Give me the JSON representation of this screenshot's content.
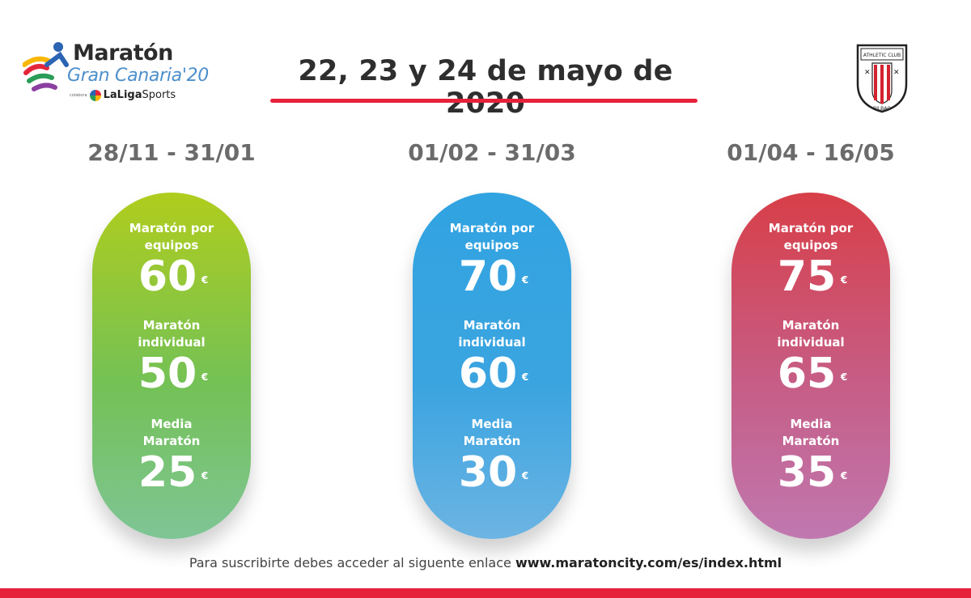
{
  "logo": {
    "title": "Maratón",
    "subtitle": "Gran Canaria'20",
    "colabora": "colabora",
    "laliga": "LaLiga",
    "sports": "Sports"
  },
  "header": {
    "date": "22, 23 y 24 de mayo de 2020",
    "accent_color": "#e6213a"
  },
  "crest": {
    "top_text": "ATHLETIC CLUB",
    "bottom_text": "BILBAO"
  },
  "periods": [
    {
      "range": "28/11 - 31/01",
      "color": "green",
      "items": [
        {
          "label_1": "Maratón por",
          "label_2": "equipos",
          "price": "60",
          "currency": "€"
        },
        {
          "label_1": "Maratón",
          "label_2": "individual",
          "price": "50",
          "currency": "€"
        },
        {
          "label_1": "Media",
          "label_2": "Maratón",
          "price": "25",
          "currency": "€"
        }
      ]
    },
    {
      "range": "01/02 - 31/03",
      "color": "blue",
      "items": [
        {
          "label_1": "Maratón por",
          "label_2": "equipos",
          "price": "70",
          "currency": "€"
        },
        {
          "label_1": "Maratón",
          "label_2": "individual",
          "price": "60",
          "currency": "€"
        },
        {
          "label_1": "Media",
          "label_2": "Maratón",
          "price": "30",
          "currency": "€"
        }
      ]
    },
    {
      "range": "01/04 - 16/05",
      "color": "red",
      "items": [
        {
          "label_1": "Maratón por",
          "label_2": "equipos",
          "price": "75",
          "currency": "€"
        },
        {
          "label_1": "Maratón",
          "label_2": "individual",
          "price": "65",
          "currency": "€"
        },
        {
          "label_1": "Media",
          "label_2": "Maratón",
          "price": "35",
          "currency": "€"
        }
      ]
    }
  ],
  "footer": {
    "text": "Para suscribirte debes acceder al siguente enlace",
    "link": "www.maratoncity.com/es/index.html"
  }
}
